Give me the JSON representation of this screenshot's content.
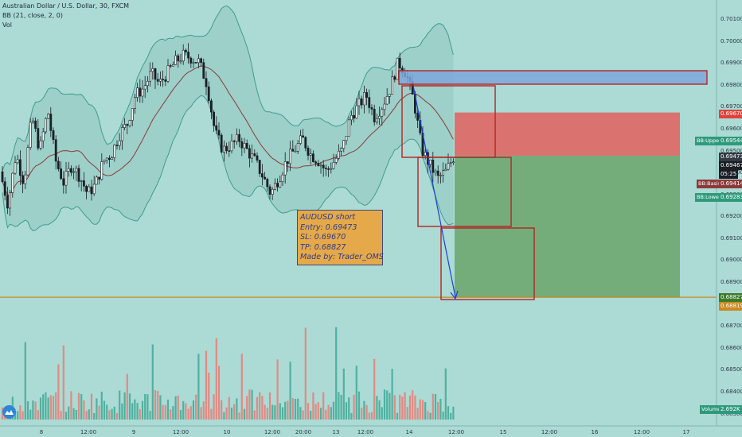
{
  "legend": {
    "symbol": "Australian Dollar / U.S. Dollar, 30, FXCM",
    "bb": "BB (21, close, 2, 0)",
    "vol": "Vol"
  },
  "note": {
    "lines": [
      "AUDUSD short",
      "Entry: 0.69473",
      "SL: 0.69670",
      "TP: 0.68827",
      "Made by: Trader_OMS"
    ]
  },
  "price_axis": {
    "ticks": [
      "0.70100",
      "0.70000",
      "0.69900",
      "0.69800",
      "0.69700",
      "0.69600",
      "0.69500",
      "0.69400",
      "0.69300",
      "0.69200",
      "0.69100",
      "0.69000",
      "0.68900",
      "0.68800",
      "0.68700",
      "0.68600",
      "0.68500",
      "0.68400",
      "0.68300"
    ],
    "tags": {
      "sl": "0.69670",
      "bb_upper": "0.69544",
      "entry": "0.69473",
      "current": "0.69467",
      "countdown": "05:25",
      "bb_basis": "0.69414",
      "bb_lower": "0.69283",
      "tp": "0.68827",
      "tp2": "0.68819",
      "volume": "2.692K"
    },
    "indicator_labels": {
      "bb_upper": "BB:Upper",
      "bb_basis": "BB:Basis",
      "bb_lower": "BB:Lower",
      "volume": "Volume"
    }
  },
  "time_axis": {
    "labels": [
      "8",
      "12:00",
      "9",
      "12:00",
      "10",
      "12:00",
      "20:00",
      "13",
      "12:00",
      "14",
      "12:00",
      "15",
      "12:00",
      "16",
      "12:00",
      "17"
    ]
  },
  "colors": {
    "background": "#acdad5",
    "candle": "#1a1f26",
    "bb_band": "#3f9d8c",
    "bb_basis": "#8b3a3a",
    "stop_zone": "#e2605d",
    "target_zone": "#6aa56a",
    "zone_outline": "#b32424",
    "blue_zone": "#7ea7dc",
    "arrow": "#1f3fd6",
    "tp_line": "#c98a1f",
    "vol_up": "#4fb1a0",
    "vol_down": "#e08a83"
  },
  "chart_data": {
    "type": "candlestick",
    "title": "Australian Dollar / U.S. Dollar, 30, FXCM",
    "price_range": [
      0.6878,
      0.7012
    ],
    "approx_close_path": [
      [
        0,
        0.694
      ],
      [
        10,
        0.6925
      ],
      [
        20,
        0.6948
      ],
      [
        30,
        0.6935
      ],
      [
        40,
        0.6965
      ],
      [
        50,
        0.695
      ],
      [
        60,
        0.6968
      ],
      [
        70,
        0.6945
      ],
      [
        80,
        0.6935
      ],
      [
        90,
        0.6943
      ],
      [
        100,
        0.6938
      ],
      [
        110,
        0.693
      ],
      [
        120,
        0.6934
      ],
      [
        130,
        0.6945
      ],
      [
        140,
        0.6948
      ],
      [
        150,
        0.6957
      ],
      [
        160,
        0.6962
      ],
      [
        170,
        0.6975
      ],
      [
        180,
        0.6978
      ],
      [
        190,
        0.6985
      ],
      [
        200,
        0.698
      ],
      [
        210,
        0.6985
      ],
      [
        220,
        0.699
      ],
      [
        230,
        0.6993
      ],
      [
        240,
        0.6992
      ],
      [
        250,
        0.699
      ],
      [
        260,
        0.698
      ],
      [
        270,
        0.6958
      ],
      [
        280,
        0.695
      ],
      [
        290,
        0.6952
      ],
      [
        300,
        0.6955
      ],
      [
        310,
        0.695
      ],
      [
        320,
        0.6945
      ],
      [
        330,
        0.6938
      ],
      [
        340,
        0.693
      ],
      [
        350,
        0.6937
      ],
      [
        360,
        0.6945
      ],
      [
        370,
        0.695
      ],
      [
        380,
        0.6955
      ],
      [
        390,
        0.6948
      ],
      [
        400,
        0.6945
      ],
      [
        410,
        0.694
      ],
      [
        420,
        0.6945
      ],
      [
        430,
        0.695
      ],
      [
        440,
        0.6965
      ],
      [
        450,
        0.697
      ],
      [
        460,
        0.6975
      ],
      [
        470,
        0.6965
      ],
      [
        480,
        0.697
      ],
      [
        490,
        0.6978
      ],
      [
        500,
        0.699
      ],
      [
        510,
        0.6985
      ],
      [
        520,
        0.6972
      ],
      [
        530,
        0.695
      ],
      [
        540,
        0.6943
      ],
      [
        550,
        0.6937
      ],
      [
        560,
        0.694
      ],
      [
        570,
        0.6947
      ]
    ],
    "trade": {
      "direction": "short",
      "entry": 0.69473,
      "stop_loss": 0.6967,
      "take_profit": 0.68827
    },
    "indicators": {
      "bb_upper": 0.69544,
      "bb_basis": 0.69414,
      "bb_lower": 0.69283
    },
    "volume_last": "2.692K"
  }
}
